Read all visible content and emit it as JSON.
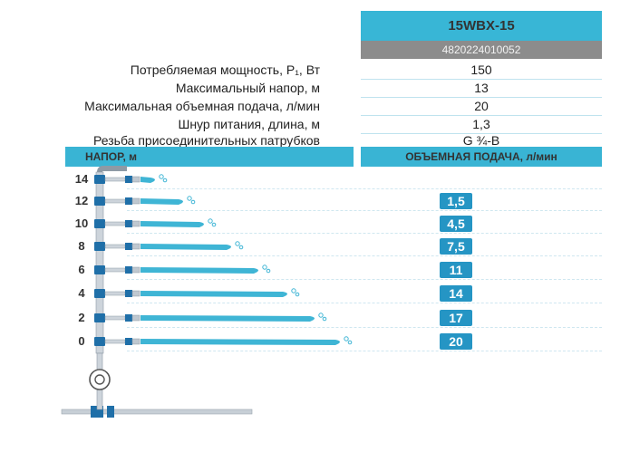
{
  "header": {
    "model": "15WBX-15",
    "barcode": "4820224010052"
  },
  "specs": [
    {
      "label": "Потребляемая мощность, Р₁, Вт",
      "value": "150"
    },
    {
      "label": "Максимальный напор, м",
      "value": "13"
    },
    {
      "label": "Максимальная объемная подача, л/мин",
      "value": "20"
    },
    {
      "label": "Шнур питания, длина, м",
      "value": "1,3"
    },
    {
      "label": "Резьба присоединительных патрубков",
      "value": "G ¾-В"
    }
  ],
  "chart": {
    "left_header": "НАПОР, м",
    "right_header": "ОБЪЕМНАЯ ПОДАЧА, л/мин",
    "rows": [
      {
        "head": "14",
        "flow": ""
      },
      {
        "head": "12",
        "flow": "1,5"
      },
      {
        "head": "10",
        "flow": "4,5"
      },
      {
        "head": "8",
        "flow": "7,5"
      },
      {
        "head": "6",
        "flow": "11"
      },
      {
        "head": "4",
        "flow": "14"
      },
      {
        "head": "2",
        "flow": "17"
      },
      {
        "head": "0",
        "flow": "20"
      }
    ]
  },
  "colors": {
    "accent": "#38b6d6",
    "badge": "#2595c4",
    "pipe": "#b8c2cc",
    "water": "#3fb5d5"
  }
}
